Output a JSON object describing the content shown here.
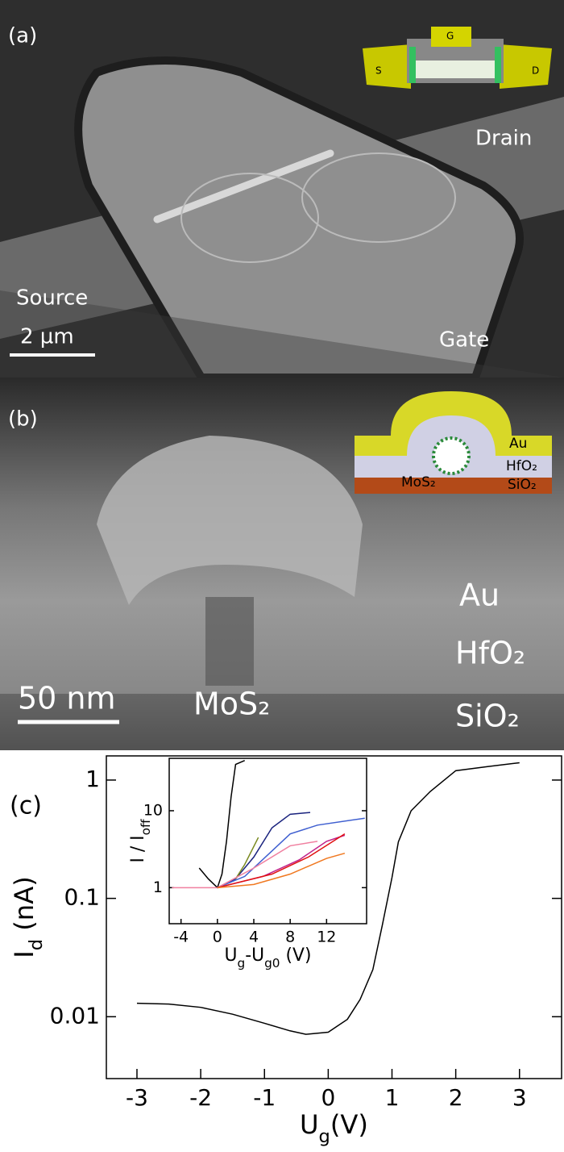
{
  "panel_a": {
    "label": "(a)",
    "source": "Source",
    "drain": "Drain",
    "gate": "Gate",
    "scale_bar": "2 µm",
    "inset": {
      "gate": "G",
      "source": "S",
      "drain": "D"
    }
  },
  "panel_b": {
    "label": "(b)",
    "scale_bar": "50 nm",
    "au": "Au",
    "hfo2": "HfO₂",
    "mos2": "MoS₂",
    "sio2": "SiO₂",
    "inset": {
      "au": "Au",
      "hfo2": "HfO₂",
      "mos2": "MoS₂",
      "sio2": "SiO₂"
    }
  },
  "chart_data": [
    {
      "type": "line",
      "panel_label": "(c)",
      "xlabel": [
        "U",
        "g",
        "(V)"
      ],
      "ylabel": [
        "I",
        "d",
        " (nA)"
      ],
      "log_y": true,
      "xlim": [
        -3.48,
        3.66
      ],
      "ylim": [
        0.003,
        1.6
      ],
      "xticks": [
        -3,
        -2,
        -1,
        0,
        1,
        2,
        3
      ],
      "yticks": [
        0.01,
        0.1,
        1
      ],
      "series": [
        {
          "color": "#000000",
          "x": [
            -3,
            -2.5,
            -2,
            -1.5,
            -1,
            -0.6,
            -0.35,
            0,
            0.3,
            0.5,
            0.7,
            0.85,
            1,
            1.1,
            1.3,
            1.6,
            2,
            2.5,
            3
          ],
          "values": [
            0.013,
            0.0128,
            0.012,
            0.0105,
            0.0088,
            0.0076,
            0.0071,
            0.0074,
            0.0095,
            0.014,
            0.025,
            0.06,
            0.15,
            0.3,
            0.55,
            0.8,
            1.2,
            1.3,
            1.4
          ]
        }
      ]
    },
    {
      "type": "line",
      "xlabel": [
        "U",
        "g",
        "-U",
        "g0",
        "  (V)"
      ],
      "ylabel": [
        "I / I",
        "off"
      ],
      "log_y": true,
      "xlim": [
        -5.3,
        16.4
      ],
      "ylim": [
        0.34,
        48
      ],
      "xticks": [
        -4,
        0,
        4,
        8,
        12
      ],
      "yticks": [
        1,
        10
      ],
      "series": [
        {
          "color": "#000000",
          "x": [
            -2,
            -1,
            0,
            0.5,
            1,
            1.5,
            2,
            3
          ],
          "values": [
            1.8,
            1.3,
            1,
            1.5,
            4,
            15,
            40,
            45
          ]
        },
        {
          "color": "#1a237e",
          "x": [
            0,
            2,
            4,
            6,
            8,
            10.2
          ],
          "values": [
            1,
            1.3,
            2.5,
            6,
            9,
            9.5
          ]
        },
        {
          "color": "#3f5fd0",
          "x": [
            0,
            3,
            6,
            8,
            11,
            16.2
          ],
          "values": [
            1,
            1.4,
            3,
            5,
            6.5,
            8
          ]
        },
        {
          "color": "#7a8a20",
          "x": [
            2,
            3,
            4.5
          ],
          "values": [
            1.3,
            2,
            4.5
          ]
        },
        {
          "color": "#f080a0",
          "x": [
            -5,
            -2,
            0,
            4,
            8,
            11
          ],
          "values": [
            1,
            1,
            1,
            1.8,
            3.5,
            4
          ]
        },
        {
          "color": "#c0208a",
          "x": [
            0,
            5,
            9,
            12,
            14
          ],
          "values": [
            1,
            1.4,
            2.3,
            4,
            4.8
          ]
        },
        {
          "color": "#e01010",
          "x": [
            0,
            6,
            10,
            14
          ],
          "values": [
            1,
            1.5,
            2.5,
            5
          ]
        },
        {
          "color": "#f07820",
          "x": [
            0,
            4,
            8,
            12,
            14
          ],
          "values": [
            1,
            1.1,
            1.5,
            2.4,
            2.8
          ]
        }
      ]
    }
  ]
}
